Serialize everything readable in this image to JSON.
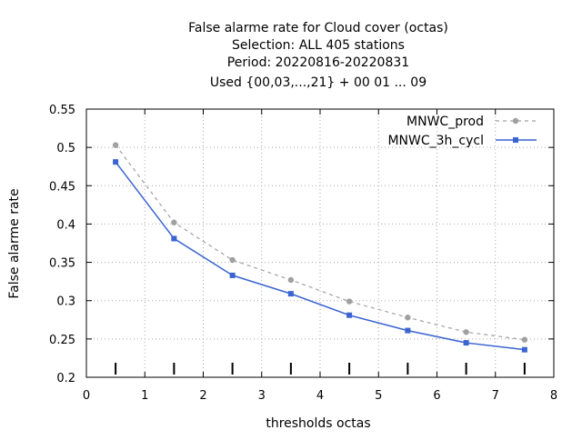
{
  "chart_data": {
    "type": "line",
    "title_lines": [
      "False alarme rate  for Cloud cover (octas)",
      "Selection: ALL    405 stations",
      "Period: 20220816-20220831",
      "Used {00,03,...,21} + 00 01 ... 09"
    ],
    "xlabel": "thresholds octas",
    "ylabel": "False alarme rate",
    "xlim": [
      0,
      8
    ],
    "ylim": [
      0.2,
      0.55
    ],
    "xticks": [
      "0",
      "1",
      "2",
      "3",
      "4",
      "5",
      "6",
      "7",
      "8"
    ],
    "yticks": [
      "0.2",
      "0.25",
      "0.3",
      "0.35",
      "0.4",
      "0.45",
      "0.5",
      "0.55"
    ],
    "grid": true,
    "legend_position": "top-right",
    "x": [
      0.5,
      1.5,
      2.5,
      3.5,
      4.5,
      5.5,
      6.5,
      7.5
    ],
    "series": [
      {
        "name": "MNWC_prod",
        "color": "#a0a0a0",
        "dashed": true,
        "values": [
          0.503,
          0.402,
          0.353,
          0.327,
          0.299,
          0.278,
          0.259,
          0.249
        ]
      },
      {
        "name": "MNWC_3h_cycl",
        "color": "#3a64d0",
        "dashed": false,
        "values": [
          0.481,
          0.381,
          0.333,
          0.309,
          0.281,
          0.261,
          0.245,
          0.236
        ]
      }
    ]
  }
}
